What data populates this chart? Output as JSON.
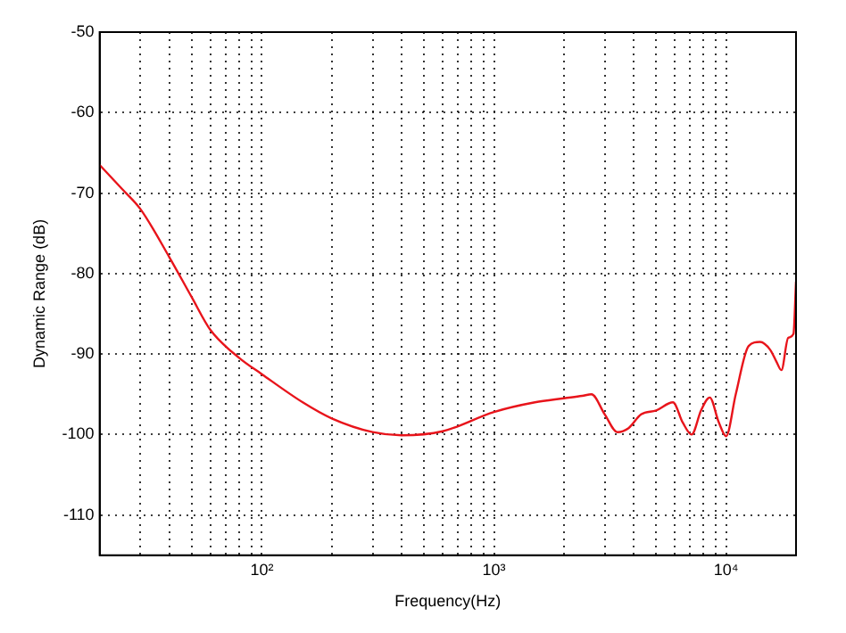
{
  "chart_data": {
    "type": "line",
    "xlabel": "Frequency(Hz)",
    "ylabel": "Dynamic Range (dB)",
    "x": [
      20,
      25,
      30,
      40,
      50,
      60,
      80,
      100,
      150,
      200,
      300,
      400,
      600,
      1000,
      1500,
      2000,
      2400,
      2630,
      3000,
      3400,
      3800,
      4300,
      5000,
      5900,
      6500,
      7100,
      7800,
      8500,
      9300,
      10000,
      11000,
      12500,
      14000,
      15500,
      16500,
      17300,
      18500,
      19500,
      20000
    ],
    "series": [
      {
        "color": "#e8141b",
        "values": [
          -66.5,
          -69.5,
          -72,
          -78,
          -83,
          -87,
          -90.5,
          -92.5,
          -96,
          -98,
          -99.7,
          -100.1,
          -99.6,
          -97.2,
          -96,
          -95.5,
          -95.2,
          -95,
          -97.5,
          -99.7,
          -99.2,
          -97.5,
          -97,
          -96,
          -98.5,
          -100,
          -97,
          -95.4,
          -98.5,
          -100.2,
          -95,
          -89,
          -88.5,
          -89.5,
          -91,
          -92,
          -88,
          -87.5,
          -81
        ]
      }
    ],
    "xlim": [
      20,
      20000
    ],
    "ylim": [
      -115,
      -50
    ],
    "xticks": [
      {
        "value": 20,
        "label": null
      },
      {
        "value": 30,
        "label": null
      },
      {
        "value": 40,
        "label": null
      },
      {
        "value": 50,
        "label": null
      },
      {
        "value": 60,
        "label": null
      },
      {
        "value": 70,
        "label": null
      },
      {
        "value": 80,
        "label": null
      },
      {
        "value": 90,
        "label": null
      },
      {
        "value": 100,
        "label": "10²"
      },
      {
        "value": 200,
        "label": null
      },
      {
        "value": 300,
        "label": null
      },
      {
        "value": 400,
        "label": null
      },
      {
        "value": 500,
        "label": null
      },
      {
        "value": 600,
        "label": null
      },
      {
        "value": 700,
        "label": null
      },
      {
        "value": 800,
        "label": null
      },
      {
        "value": 900,
        "label": null
      },
      {
        "value": 1000,
        "label": "10³"
      },
      {
        "value": 2000,
        "label": null
      },
      {
        "value": 3000,
        "label": null
      },
      {
        "value": 4000,
        "label": null
      },
      {
        "value": 5000,
        "label": null
      },
      {
        "value": 6000,
        "label": null
      },
      {
        "value": 7000,
        "label": null
      },
      {
        "value": 8000,
        "label": null
      },
      {
        "value": 9000,
        "label": null
      },
      {
        "value": 10000,
        "label": "10⁴"
      },
      {
        "value": 20000,
        "label": null
      }
    ],
    "yticks": [
      -110,
      -100,
      -90,
      -80,
      -70,
      -60,
      -50
    ],
    "log": "x",
    "grid": true,
    "legend": false,
    "marker": "none",
    "line_style": "solid"
  }
}
